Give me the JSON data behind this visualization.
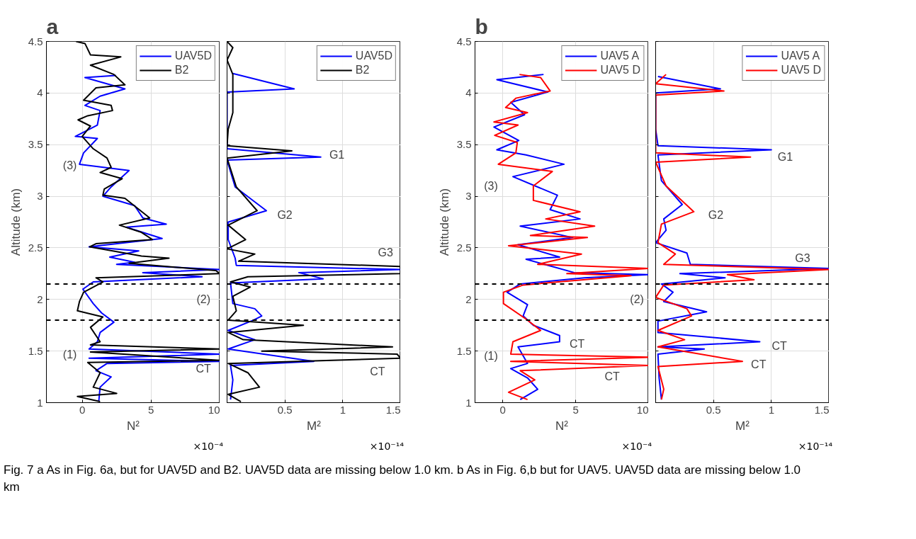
{
  "chart_data": [
    {
      "type": "line",
      "title": "a",
      "xlabel": "N²",
      "ylabel": "Altitude (km)",
      "xlim": [
        -2.6,
        10
      ],
      "ylim": [
        1,
        4.5
      ],
      "xticks": [
        0,
        5,
        10
      ],
      "yticks": [
        1,
        1.5,
        2,
        2.5,
        3,
        3.5,
        4,
        4.5
      ],
      "grid": true,
      "legend": "top right",
      "ref_lines": [
        {
          "axis": "y",
          "value": 2.15,
          "color": "#000000",
          "line_style": "dashed"
        },
        {
          "axis": "y",
          "value": 1.8,
          "color": "#000000",
          "line_style": "dashed"
        }
      ],
      "annotations": [
        "×10⁻⁴",
        "(3)",
        "(1)",
        "(2)",
        "CT"
      ],
      "series": [
        {
          "name": "UAV5D",
          "color": "#0000ff",
          "x": [
            2.45,
            0.2,
            3.1,
            1.3,
            0.2,
            1.3,
            1.1,
            -0.5,
            1.1,
            0.1,
            -0.2,
            3.4,
            2.1,
            1.5,
            3.8,
            4.4,
            6.1,
            3.2,
            5.8,
            0.5,
            4.1,
            2.0,
            3.8,
            2.5,
            10,
            4.4,
            8.7,
            0.8,
            0.05,
            0.8,
            1.4,
            2.3,
            1.3,
            1.1,
            0.5,
            10,
            0.5,
            10,
            1.8,
            1.0,
            2.1,
            1.3,
            1.2
          ],
          "values": [
            4.17,
            4.15,
            4.04,
            3.97,
            3.88,
            3.83,
            3.69,
            3.58,
            3.56,
            3.42,
            3.31,
            3.25,
            3.09,
            3.0,
            2.91,
            2.79,
            2.73,
            2.7,
            2.59,
            2.51,
            2.47,
            2.41,
            2.36,
            2.34,
            2.29,
            2.26,
            2.22,
            2.17,
            2.1,
            1.96,
            1.87,
            1.78,
            1.68,
            1.59,
            1.52,
            1.47,
            1.43,
            1.4,
            1.38,
            1.31,
            1.25,
            1.15,
            1.01
          ]
        },
        {
          "name": "B2",
          "color": "#000000",
          "x": [
            -0.45,
            0.2,
            0.6,
            2.8,
            0.6,
            2.3,
            3.1,
            1.0,
            0.1,
            2.1,
            2.2,
            0.4,
            -0.3,
            0.6,
            0,
            0.8,
            1.8,
            2.1,
            1.3,
            2.9,
            1.6,
            1.5,
            3.1,
            4.9,
            2.7,
            4.3,
            5.1,
            1.0,
            0.55,
            4.3,
            6.3,
            3.4,
            9.7,
            10,
            1.0,
            1.5,
            0.1,
            -0.2,
            -0.35,
            1.5,
            0.6,
            1.3,
            0.6,
            10,
            0.6,
            10,
            0.4,
            1.3,
            0.8,
            2.5,
            -0.35,
            1.3
          ],
          "values": [
            4.5,
            4.48,
            4.37,
            4.35,
            4.27,
            4.18,
            4.08,
            4.05,
            3.93,
            3.88,
            3.83,
            3.78,
            3.74,
            3.68,
            3.58,
            3.46,
            3.37,
            3.28,
            3.23,
            3.17,
            3.07,
            3.01,
            2.98,
            2.79,
            2.72,
            2.65,
            2.58,
            2.54,
            2.51,
            2.42,
            2.4,
            2.35,
            2.28,
            2.25,
            2.21,
            2.17,
            2.07,
            1.98,
            1.89,
            1.83,
            1.73,
            1.59,
            1.56,
            1.52,
            1.49,
            1.41,
            1.39,
            1.29,
            1.15,
            1.09,
            1.06,
            1.01
          ]
        }
      ]
    },
    {
      "type": "line",
      "xlabel": "M²",
      "xlim": [
        0,
        1.5
      ],
      "ylim": [
        1,
        4.5
      ],
      "xticks": [
        {
          "value": 0,
          "label": null
        },
        0.5,
        1,
        1.5
      ],
      "yticks": [
        1,
        1.5,
        2,
        2.5,
        3,
        3.5,
        4,
        4.5
      ],
      "grid": true,
      "legend": "top right",
      "tick_labels": "x",
      "ref_lines": [
        {
          "axis": "y",
          "value": 2.15,
          "color": "#000000",
          "line_style": "dashed"
        },
        {
          "axis": "y",
          "value": 1.8,
          "color": "#000000",
          "line_style": "dashed"
        }
      ],
      "annotations": [
        "×10⁻¹⁴",
        "G1",
        "G2",
        "G3",
        "CT"
      ],
      "series": [
        {
          "name": "UAV5D",
          "color": "#0000ff",
          "x": [
            0.05,
            0.58,
            0,
            0,
            0,
            0.81,
            0,
            0.07,
            0.34,
            0.01,
            0.01,
            0.07,
            0.08,
            1.5,
            0.62,
            0.83,
            0.03,
            0.05,
            0.24,
            0.3,
            0.23,
            0.01,
            0.24,
            0.01,
            0.75,
            0.03,
            0.05,
            0.03
          ],
          "values": [
            4.19,
            4.04,
            4.01,
            3.76,
            3.46,
            3.38,
            3.35,
            3.09,
            2.86,
            2.75,
            2.58,
            2.4,
            2.33,
            2.29,
            2.26,
            2.2,
            2.16,
            1.96,
            1.91,
            1.84,
            1.8,
            1.7,
            1.61,
            1.52,
            1.4,
            1.36,
            1.22,
            1.03
          ]
        },
        {
          "name": "B2",
          "color": "#000000",
          "x": [
            0,
            0.05,
            0,
            0.05,
            0.05,
            0.05,
            0.01,
            0,
            0.56,
            0,
            0.08,
            0.26,
            0.01,
            0.16,
            0,
            0.24,
            0.1,
            1.5,
            1.5,
            0.18,
            0.03,
            0.2,
            0.05,
            0.08,
            0.01,
            0.66,
            0.01,
            0.14,
            1.43,
            0.3,
            1.47,
            1.5,
            0.01,
            0.18,
            0.28,
            0.01,
            0.12
          ],
          "values": [
            4.5,
            4.44,
            4.32,
            4.18,
            4.0,
            3.81,
            3.65,
            3.49,
            3.44,
            3.37,
            3.09,
            2.86,
            2.72,
            2.58,
            2.49,
            2.44,
            2.37,
            2.32,
            2.25,
            2.22,
            2.17,
            2.12,
            2.03,
            1.89,
            1.8,
            1.75,
            1.68,
            1.61,
            1.54,
            1.5,
            1.47,
            1.43,
            1.38,
            1.29,
            1.15,
            1.08,
            1.01
          ]
        }
      ]
    },
    {
      "type": "line",
      "title": "b",
      "xlabel": "N²",
      "ylabel": "Altitude (km)",
      "xlim": [
        -1.9,
        10
      ],
      "ylim": [
        1,
        4.5
      ],
      "xticks": [
        0,
        5,
        10
      ],
      "yticks": [
        1,
        1.5,
        2,
        2.5,
        3,
        3.5,
        4,
        4.5
      ],
      "grid": true,
      "legend": "top right",
      "ref_lines": [
        {
          "axis": "y",
          "value": 2.15,
          "color": "#000000",
          "line_style": "dashed"
        },
        {
          "axis": "y",
          "value": 1.8,
          "color": "#000000",
          "line_style": "dashed"
        }
      ],
      "annotations": [
        "×10⁻⁴",
        "(3)",
        "(1)",
        "(2)",
        "CT",
        "CT"
      ],
      "series": [
        {
          "name": "UAV5 A",
          "color": "#0000ff",
          "x": [
            2.8,
            -0.4,
            3.1,
            0.55,
            1.5,
            -0.6,
            1.1,
            -0.4,
            1.6,
            4.2,
            0.7,
            3.75,
            3.25,
            5.3,
            1.2,
            4.8,
            1.05,
            3.9,
            1.6,
            4.9,
            10,
            5.6,
            1.2,
            0.3,
            1.7,
            1.4,
            2.1,
            3.9,
            3.9,
            1.05,
            1.7,
            0.55,
            1.7,
            2.4,
            1.2
          ],
          "values": [
            4.18,
            4.13,
            4.01,
            3.91,
            3.79,
            3.67,
            3.54,
            3.45,
            3.4,
            3.31,
            3.19,
            3.01,
            2.87,
            2.78,
            2.71,
            2.6,
            2.53,
            2.41,
            2.39,
            2.26,
            2.24,
            2.21,
            2.15,
            2.07,
            1.95,
            1.84,
            1.75,
            1.65,
            1.59,
            1.54,
            1.38,
            1.33,
            1.24,
            1.13,
            1.03
          ]
        },
        {
          "name": "UAV5 D",
          "color": "#ff0000",
          "x": [
            1.15,
            2.6,
            3.25,
            0.9,
            0.2,
            1.7,
            -0.6,
            1.05,
            -0.55,
            1.0,
            0.9,
            -0.3,
            3.4,
            2.1,
            2.1,
            5.3,
            2.95,
            6.3,
            1.9,
            5.8,
            0.4,
            5.4,
            2.4,
            10,
            4.4,
            8.8,
            1.4,
            0.05,
            0.05,
            1.6,
            2.6,
            0.7,
            0.55,
            10,
            0.55,
            10,
            1.2,
            2.2,
            0.4,
            1.7
          ],
          "values": [
            4.18,
            4.15,
            4.02,
            3.95,
            3.86,
            3.81,
            3.72,
            3.69,
            3.59,
            3.52,
            3.42,
            3.31,
            3.24,
            3.1,
            2.96,
            2.85,
            2.78,
            2.71,
            2.62,
            2.6,
            2.52,
            2.44,
            2.34,
            2.3,
            2.25,
            2.23,
            2.14,
            2.07,
            1.96,
            1.81,
            1.7,
            1.59,
            1.47,
            1.44,
            1.4,
            1.36,
            1.31,
            1.22,
            1.1,
            1.03
          ]
        }
      ]
    },
    {
      "type": "line",
      "xlabel": "M²",
      "xlim": [
        0,
        1.5
      ],
      "ylim": [
        1,
        4.5
      ],
      "xticks": [
        {
          "value": 0,
          "label": null
        },
        0.5,
        1,
        1.5
      ],
      "yticks": [
        1,
        1.5,
        2,
        2.5,
        3,
        3.5,
        4,
        4.5
      ],
      "grid": true,
      "legend": "top right",
      "tick_labels": "x",
      "ref_lines": [
        {
          "axis": "y",
          "value": 2.15,
          "color": "#000000",
          "line_style": "dashed"
        },
        {
          "axis": "y",
          "value": 1.8,
          "color": "#000000",
          "line_style": "dashed"
        }
      ],
      "annotations": [
        "×10⁻¹⁴",
        "G1",
        "G2",
        "G3",
        "CT",
        "CT",
        "Fig. 7 a As in Fig. 6a, but for UAV5D and B2. UAV5D data are missing below 1.0 km. b As in Fig. 6,b but for UAV5. UAV5D data are missing below 1.0 km"
      ],
      "series": [
        {
          "name": "UAV5 A",
          "color": "#0000ff",
          "x": [
            0.02,
            0.56,
            0,
            0,
            0.02,
            1.0,
            0.02,
            0.05,
            0.23,
            0.07,
            0.09,
            0,
            0.27,
            0.3,
            1.5,
            0.21,
            0.6,
            0.05,
            0.15,
            0.07,
            0.44,
            0.02,
            0.02,
            0.9,
            0.02,
            0.42,
            0.02,
            0.03,
            0.05
          ],
          "values": [
            4.16,
            4.04,
            4.0,
            3.65,
            3.49,
            3.45,
            3.4,
            3.15,
            2.92,
            2.78,
            2.67,
            2.55,
            2.45,
            2.34,
            2.3,
            2.25,
            2.21,
            2.15,
            2.07,
            1.98,
            1.88,
            1.79,
            1.68,
            1.59,
            1.54,
            1.52,
            1.47,
            1.24,
            1.03
          ]
        },
        {
          "name": "UAV5 D",
          "color": "#ff0000",
          "x": [
            0.09,
            0,
            0.59,
            0,
            0,
            0,
            0.82,
            0,
            0.09,
            0.33,
            0.05,
            0.02,
            0.17,
            0.07,
            1.5,
            0.62,
            0.85,
            0.07,
            0,
            0.27,
            0.31,
            0.02,
            0.25,
            0.02,
            0.75,
            0.02,
            0.07,
            0.05
          ],
          "values": [
            4.18,
            4.09,
            4.02,
            3.98,
            3.65,
            3.42,
            3.38,
            3.33,
            3.1,
            2.85,
            2.73,
            2.55,
            2.44,
            2.34,
            2.29,
            2.24,
            2.19,
            2.14,
            2.02,
            1.91,
            1.84,
            1.7,
            1.61,
            1.54,
            1.4,
            1.35,
            1.13,
            1.03
          ]
        }
      ]
    }
  ]
}
